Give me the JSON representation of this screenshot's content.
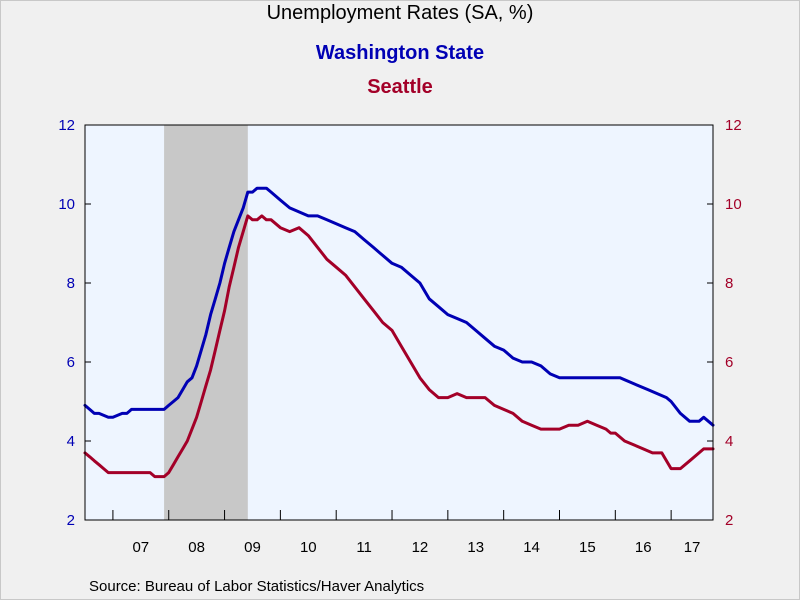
{
  "chart_data": {
    "type": "line",
    "title": "Unemployment Rates (SA, %)",
    "xlabel": "",
    "ylabel": "",
    "x_start": "2006-07",
    "x_end": "2017-10",
    "x_tick_labels": [
      "07",
      "08",
      "09",
      "10",
      "11",
      "12",
      "13",
      "14",
      "15",
      "16",
      "17"
    ],
    "ylim": [
      2,
      12
    ],
    "y_ticks": [
      2,
      4,
      6,
      8,
      10,
      12
    ],
    "y_ticks_right": [
      2,
      4,
      6,
      8,
      10,
      12
    ],
    "recession": {
      "start": "2007-12",
      "end": "2009-06"
    },
    "series": [
      {
        "name": "Washington State",
        "color": "#0000b4",
        "axis": "left",
        "x": [
          "2006-07",
          "2006-08",
          "2006-09",
          "2006-10",
          "2006-12",
          "2007-01",
          "2007-03",
          "2007-04",
          "2007-05",
          "2007-06",
          "2007-09",
          "2007-12",
          "2008-01",
          "2008-02",
          "2008-03",
          "2008-04",
          "2008-05",
          "2008-06",
          "2008-07",
          "2008-08",
          "2008-09",
          "2008-10",
          "2008-11",
          "2008-12",
          "2009-01",
          "2009-02",
          "2009-03",
          "2009-04",
          "2009-05",
          "2009-06",
          "2009-07",
          "2009-08",
          "2009-09",
          "2009-10",
          "2009-11",
          "2010-01",
          "2010-03",
          "2010-05",
          "2010-07",
          "2010-08",
          "2010-09",
          "2010-11",
          "2011-01",
          "2011-03",
          "2011-05",
          "2011-07",
          "2011-09",
          "2011-11",
          "2012-01",
          "2012-03",
          "2012-05",
          "2012-07",
          "2012-09",
          "2012-11",
          "2013-01",
          "2013-03",
          "2013-05",
          "2013-07",
          "2013-09",
          "2013-11",
          "2014-01",
          "2014-03",
          "2014-05",
          "2014-07",
          "2014-09",
          "2014-11",
          "2015-01",
          "2015-02",
          "2015-05",
          "2015-09",
          "2016-01",
          "2016-02",
          "2016-04",
          "2016-06",
          "2016-08",
          "2016-10",
          "2016-12",
          "2017-01",
          "2017-03",
          "2017-05",
          "2017-07",
          "2017-08",
          "2017-10"
        ],
        "values": [
          4.9,
          4.8,
          4.7,
          4.7,
          4.6,
          4.6,
          4.7,
          4.7,
          4.8,
          4.8,
          4.8,
          4.8,
          4.9,
          5.0,
          5.1,
          5.3,
          5.5,
          5.6,
          5.9,
          6.3,
          6.7,
          7.2,
          7.6,
          8.0,
          8.5,
          8.9,
          9.3,
          9.6,
          9.9,
          10.3,
          10.3,
          10.4,
          10.4,
          10.4,
          10.3,
          10.1,
          9.9,
          9.8,
          9.7,
          9.7,
          9.7,
          9.6,
          9.5,
          9.4,
          9.3,
          9.1,
          8.9,
          8.7,
          8.5,
          8.4,
          8.2,
          8.0,
          7.6,
          7.4,
          7.2,
          7.1,
          7.0,
          6.8,
          6.6,
          6.4,
          6.3,
          6.1,
          6.0,
          6.0,
          5.9,
          5.7,
          5.6,
          5.6,
          5.6,
          5.6,
          5.6,
          5.6,
          5.5,
          5.4,
          5.3,
          5.2,
          5.1,
          5.0,
          4.7,
          4.5,
          4.5,
          4.6,
          4.4
        ]
      },
      {
        "name": "Seattle",
        "color": "#a30028",
        "axis": "right",
        "x": [
          "2006-07",
          "2006-08",
          "2006-09",
          "2006-10",
          "2006-11",
          "2006-12",
          "2007-01",
          "2007-03",
          "2007-06",
          "2007-09",
          "2007-10",
          "2007-11",
          "2007-12",
          "2008-01",
          "2008-02",
          "2008-03",
          "2008-04",
          "2008-05",
          "2008-06",
          "2008-07",
          "2008-08",
          "2008-09",
          "2008-10",
          "2008-11",
          "2008-12",
          "2009-01",
          "2009-02",
          "2009-03",
          "2009-04",
          "2009-05",
          "2009-06",
          "2009-07",
          "2009-08",
          "2009-09",
          "2009-10",
          "2009-11",
          "2010-01",
          "2010-03",
          "2010-05",
          "2010-07",
          "2010-09",
          "2010-11",
          "2011-01",
          "2011-03",
          "2011-05",
          "2011-07",
          "2011-09",
          "2011-11",
          "2012-01",
          "2012-03",
          "2012-05",
          "2012-07",
          "2012-09",
          "2012-11",
          "2013-01",
          "2013-03",
          "2013-05",
          "2013-07",
          "2013-08",
          "2013-09",
          "2013-11",
          "2014-01",
          "2014-03",
          "2014-05",
          "2014-07",
          "2014-09",
          "2014-11",
          "2015-01",
          "2015-03",
          "2015-05",
          "2015-07",
          "2015-09",
          "2015-11",
          "2015-12",
          "2016-01",
          "2016-03",
          "2016-05",
          "2016-07",
          "2016-09",
          "2016-11",
          "2017-01",
          "2017-03",
          "2017-05",
          "2017-07",
          "2017-08",
          "2017-10"
        ],
        "values": [
          3.7,
          3.6,
          3.5,
          3.4,
          3.3,
          3.2,
          3.2,
          3.2,
          3.2,
          3.2,
          3.1,
          3.1,
          3.1,
          3.2,
          3.4,
          3.6,
          3.8,
          4.0,
          4.3,
          4.6,
          5.0,
          5.4,
          5.8,
          6.3,
          6.8,
          7.3,
          7.9,
          8.4,
          8.9,
          9.3,
          9.7,
          9.6,
          9.6,
          9.7,
          9.6,
          9.6,
          9.4,
          9.3,
          9.4,
          9.2,
          8.9,
          8.6,
          8.4,
          8.2,
          7.9,
          7.6,
          7.3,
          7.0,
          6.8,
          6.4,
          6.0,
          5.6,
          5.3,
          5.1,
          5.1,
          5.2,
          5.1,
          5.1,
          5.1,
          5.1,
          4.9,
          4.8,
          4.7,
          4.5,
          4.4,
          4.3,
          4.3,
          4.3,
          4.4,
          4.4,
          4.5,
          4.4,
          4.3,
          4.2,
          4.2,
          4.0,
          3.9,
          3.8,
          3.7,
          3.7,
          3.3,
          3.3,
          3.5,
          3.7,
          3.8,
          3.8
        ]
      }
    ]
  },
  "source_text": "Source:  Bureau of Labor Statistics/Haver Analytics"
}
